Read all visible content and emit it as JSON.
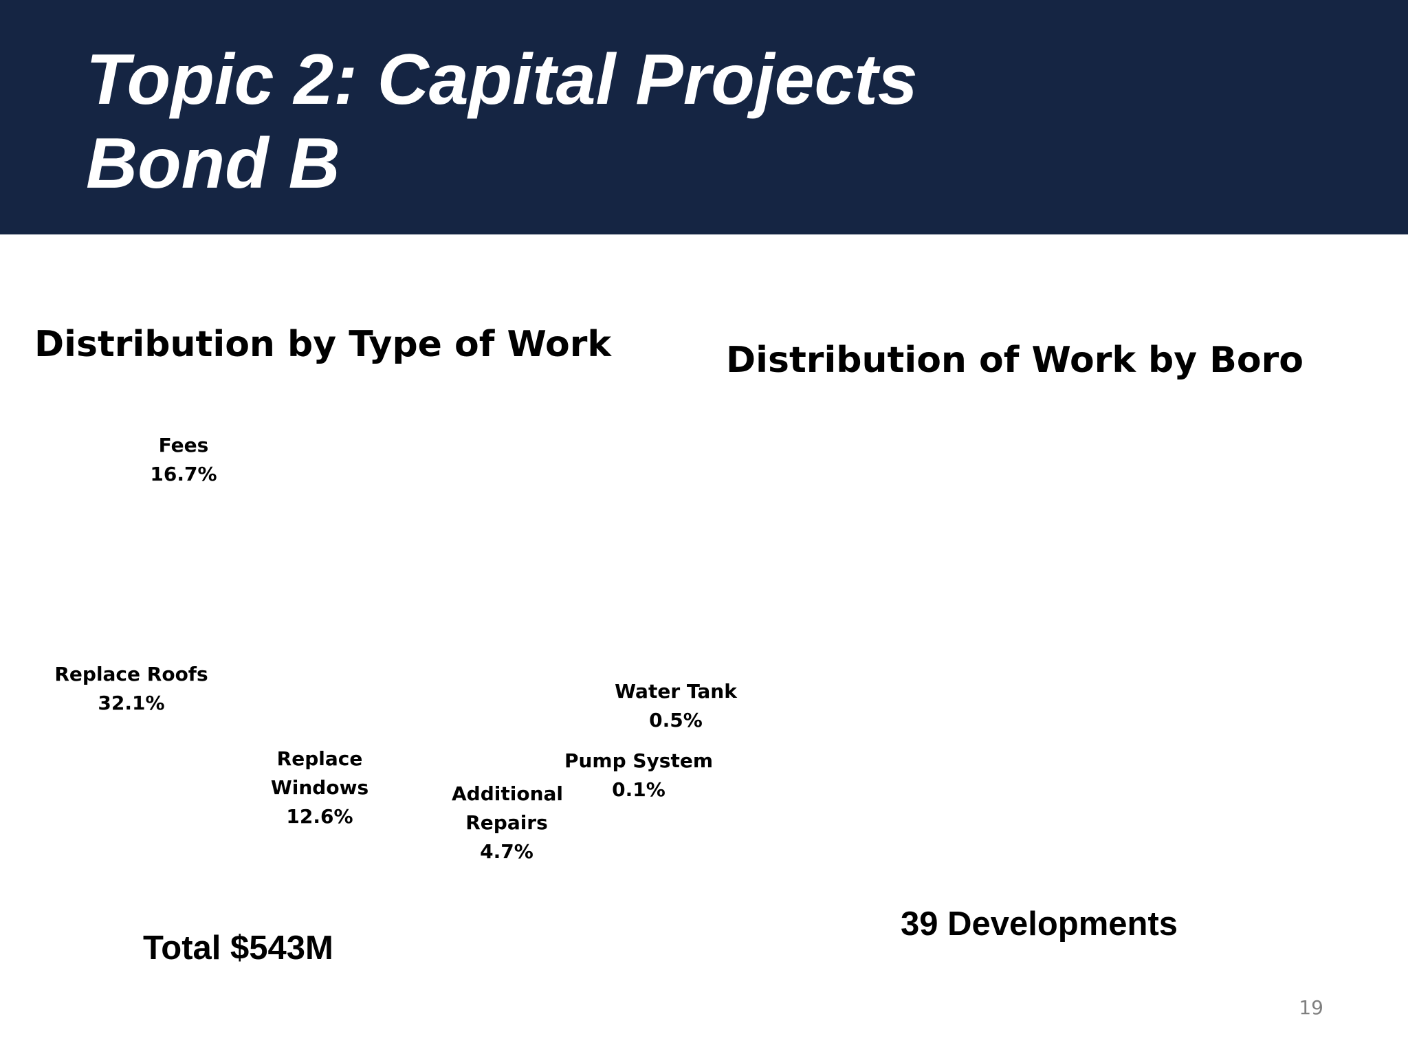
{
  "slide": {
    "title_line1": "Topic 2: Capital Projects",
    "title_line2": "Bond B",
    "page_number": "19"
  },
  "colors": {
    "header_band": "#152543",
    "title_text": "#ffffff",
    "body_text": "#000000",
    "page_number_text": "#7f7f7f"
  },
  "left_chart": {
    "heading": "Distribution by Type of Work",
    "total": "Total $543M",
    "labels": [
      {
        "name": "Fees",
        "pct": "16.7%"
      },
      {
        "name": "Replace Roofs",
        "pct": "32.1%"
      },
      {
        "name": "Replace Windows",
        "pct": "12.6%"
      },
      {
        "name": "Additional Repairs",
        "pct": "4.7%"
      },
      {
        "name": "Pump System",
        "pct": "0.1%"
      },
      {
        "name": "Water Tank",
        "pct": "0.5%"
      }
    ]
  },
  "right_chart": {
    "heading": "Distribution of Work by Boro",
    "summary": "39 Developments"
  }
}
